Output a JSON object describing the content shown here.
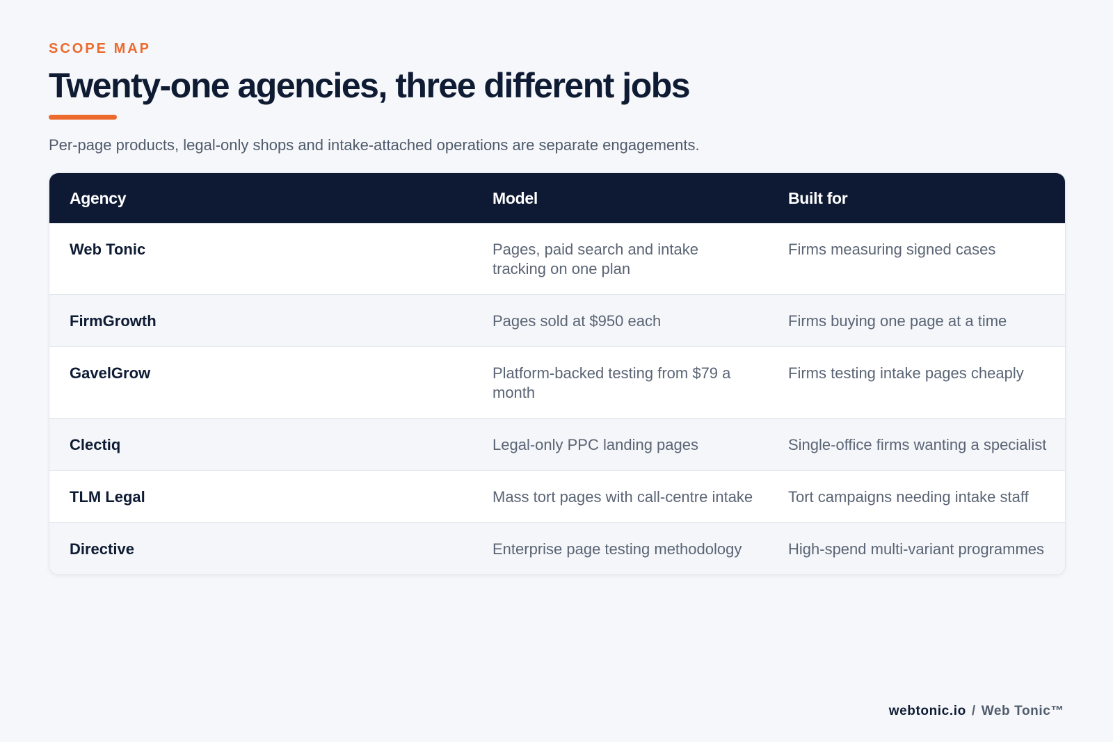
{
  "header": {
    "eyebrow": "SCOPE MAP",
    "title": "Twenty-one agencies, three different jobs",
    "subtitle": "Per-page products, legal-only shops and intake-attached operations are separate engagements."
  },
  "table": {
    "columns": [
      "Agency",
      "Model",
      "Built for"
    ],
    "rows": [
      {
        "agency": "Web Tonic",
        "model": "Pages, paid search and intake tracking on one plan",
        "built_for": "Firms measuring signed cases"
      },
      {
        "agency": "FirmGrowth",
        "model": "Pages sold at $950 each",
        "built_for": "Firms buying one page at a time"
      },
      {
        "agency": "GavelGrow",
        "model": "Platform-backed testing from $79 a month",
        "built_for": "Firms testing intake pages cheaply"
      },
      {
        "agency": "Clectiq",
        "model": "Legal-only PPC landing pages",
        "built_for": "Single-office firms wanting a specialist"
      },
      {
        "agency": "TLM Legal",
        "model": "Mass tort pages with call-centre intake",
        "built_for": "Tort campaigns needing intake staff"
      },
      {
        "agency": "Directive",
        "model": "Enterprise page testing methodology",
        "built_for": "High-spend multi-variant programmes"
      }
    ]
  },
  "footer": {
    "site": "webtonic.io",
    "separator": "/",
    "brand": "Web Tonic™"
  },
  "colors": {
    "accent": "#ec6a2e",
    "navy": "#0e1a33",
    "background": "#f5f7fa"
  }
}
